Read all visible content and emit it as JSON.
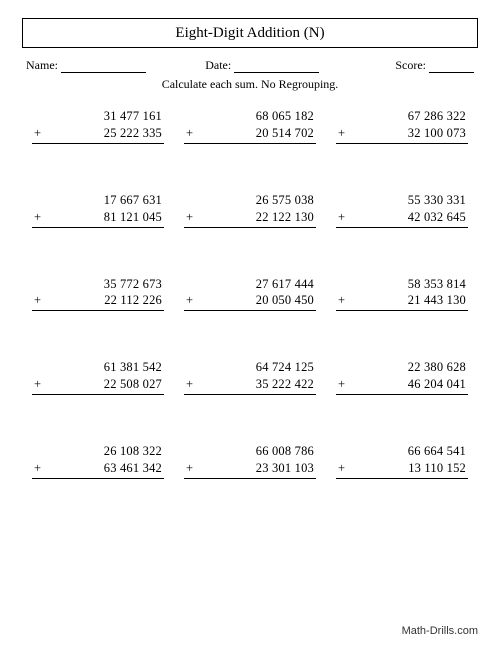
{
  "title": "Eight-Digit Addition (N)",
  "header": {
    "name_label": "Name:",
    "date_label": "Date:",
    "score_label": "Score:"
  },
  "instruction": "Calculate each sum.  No Regrouping.",
  "plus_sign": "+",
  "problems": [
    {
      "top": "31 477 161",
      "bottom": "25 222 335"
    },
    {
      "top": "68 065 182",
      "bottom": "20 514 702"
    },
    {
      "top": "67 286 322",
      "bottom": "32 100 073"
    },
    {
      "top": "17 667 631",
      "bottom": "81 121 045"
    },
    {
      "top": "26 575 038",
      "bottom": "22 122 130"
    },
    {
      "top": "55 330 331",
      "bottom": "42 032 645"
    },
    {
      "top": "35 772 673",
      "bottom": "22 112 226"
    },
    {
      "top": "27 617 444",
      "bottom": "20 050 450"
    },
    {
      "top": "58 353 814",
      "bottom": "21 443 130"
    },
    {
      "top": "61 381 542",
      "bottom": "22 508 027"
    },
    {
      "top": "64 724 125",
      "bottom": "35 222 422"
    },
    {
      "top": "22 380 628",
      "bottom": "46 204 041"
    },
    {
      "top": "26 108 322",
      "bottom": "63 461 342"
    },
    {
      "top": "66 008 786",
      "bottom": "23 301 103"
    },
    {
      "top": "66 664 541",
      "bottom": "13 110 152"
    }
  ],
  "footer": "Math-Drills.com",
  "style": {
    "background_color": "#ffffff",
    "text_color": "#000000",
    "title_fontsize": 15,
    "body_fontsize": 12.5,
    "header_fontsize": 12,
    "footer_fontsize": 11,
    "grid_cols": 3,
    "grid_rows": 5
  }
}
